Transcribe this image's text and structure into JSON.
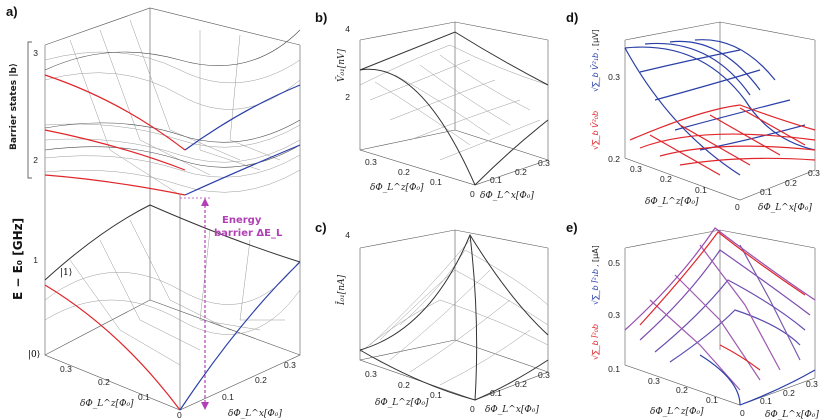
{
  "figure": {
    "panels": {
      "a": {
        "label": "a)",
        "y_axis_label": "E − E₀ [GHz]",
        "barrier_states_label": "Barrier states |b⟩",
        "y_ticks": [
          "3",
          "2",
          "1"
        ],
        "state_1_label": "|1⟩",
        "state_0_label": "|0⟩",
        "energy_barrier_label_line1": "Energy",
        "energy_barrier_label_line2": "barrier ΔE_L",
        "x_left_ticks": [
          "0.3",
          "0.2",
          "0.1",
          "0"
        ],
        "x_right_ticks": [
          "0.1",
          "0.2",
          "0.3"
        ],
        "x_left_label": "δΦ_L^z[Φ₀]",
        "x_right_label": "δΦ_L^x[Φ₀]"
      },
      "b": {
        "label": "b)",
        "z_label": "V̄₀₁[nV]",
        "z_ticks": [
          "4",
          "2"
        ],
        "x_left_ticks": [
          "0.3",
          "0.2",
          "0.1",
          "0"
        ],
        "x_right_ticks": [
          "0.1",
          "0.2",
          "0.3"
        ],
        "x_left_label": "δΦ_L^z[Φ₀]",
        "x_right_label": "δΦ_L^x[Φ₀]"
      },
      "c": {
        "label": "c)",
        "z_label": "Ī₀₁[nA]",
        "z_ticks": [
          "4"
        ],
        "x_left_ticks": [
          "0.3",
          "0.2",
          "0.1",
          "0"
        ],
        "x_right_ticks": [
          "0.1",
          "0.2",
          "0.3"
        ],
        "x_left_label": "δΦ_L^z[Φ₀]",
        "x_right_label": "δΦ_L^x[Φ₀]"
      },
      "d": {
        "label": "d)",
        "z_unit": "[μV]",
        "legend_blue": "√∑_b V̄²₁b ,",
        "legend_red": "√∑_b V̄²₀b",
        "z_ticks": [
          "0.3",
          "0.2"
        ],
        "x_left_ticks": [
          "0.3",
          "0.2",
          "0.1",
          "0"
        ],
        "x_right_ticks": [
          "0.1",
          "0.2",
          "0.3"
        ],
        "x_left_label": "δΦ_L^z[Φ₀]",
        "x_right_label": "δΦ_L^x[Φ₀]"
      },
      "e": {
        "label": "e)",
        "z_unit": "[μA]",
        "legend_blue": "√∑_b Ī²₁b ,",
        "legend_red": "√∑_b Ī²₀b",
        "z_ticks": [
          "0.5",
          "0.3",
          "0.1"
        ],
        "x_left_ticks": [
          "0.3",
          "0.2",
          "0.1",
          "0"
        ],
        "x_right_ticks": [
          "0.1",
          "0.2",
          "0.3"
        ],
        "x_left_label": "δΦ_L^z[Φ₀]",
        "x_right_label": "δΦ_L^x[Φ₀]"
      }
    },
    "colors": {
      "state0": "#e0262b",
      "state1": "#2b3fa8",
      "barrier_arrow": "#b23fb5",
      "mesh": "#4b4b4b"
    }
  }
}
